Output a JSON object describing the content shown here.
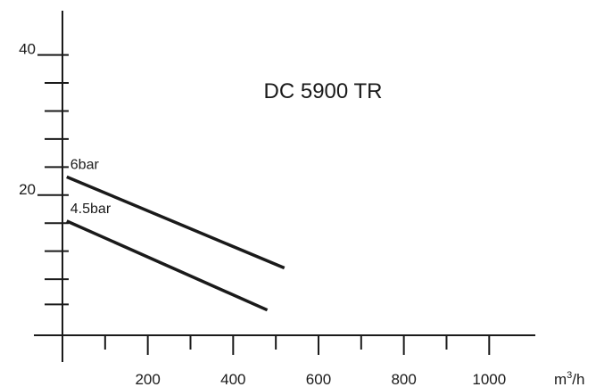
{
  "chart_data": {
    "type": "line",
    "title": "DC 5900 TR",
    "xunit": "m³/h",
    "xlim": [
      0,
      1100
    ],
    "ylim": [
      -3,
      44.5
    ],
    "x_ticks": [
      0,
      100,
      200,
      300,
      400,
      500,
      600,
      700,
      800,
      900,
      1000
    ],
    "x_major_ticks": [
      200,
      400,
      600,
      800,
      1000
    ],
    "x_tick_labels": [
      "200",
      "400",
      "600",
      "800",
      "1000"
    ],
    "y_ticks": [
      0,
      4.4,
      8,
      12,
      16,
      20,
      24,
      28,
      32,
      36,
      40
    ],
    "y_major_ticks": [
      20,
      40
    ],
    "y_tick_labels": [
      "20",
      "40"
    ],
    "series": [
      {
        "name": "6bar",
        "x": [
          10,
          520
        ],
        "y": [
          22.6,
          9.6
        ]
      },
      {
        "name": "4.5bar",
        "x": [
          10,
          480
        ],
        "y": [
          16.3,
          3.6
        ]
      }
    ],
    "grid": false,
    "legend": "none"
  }
}
